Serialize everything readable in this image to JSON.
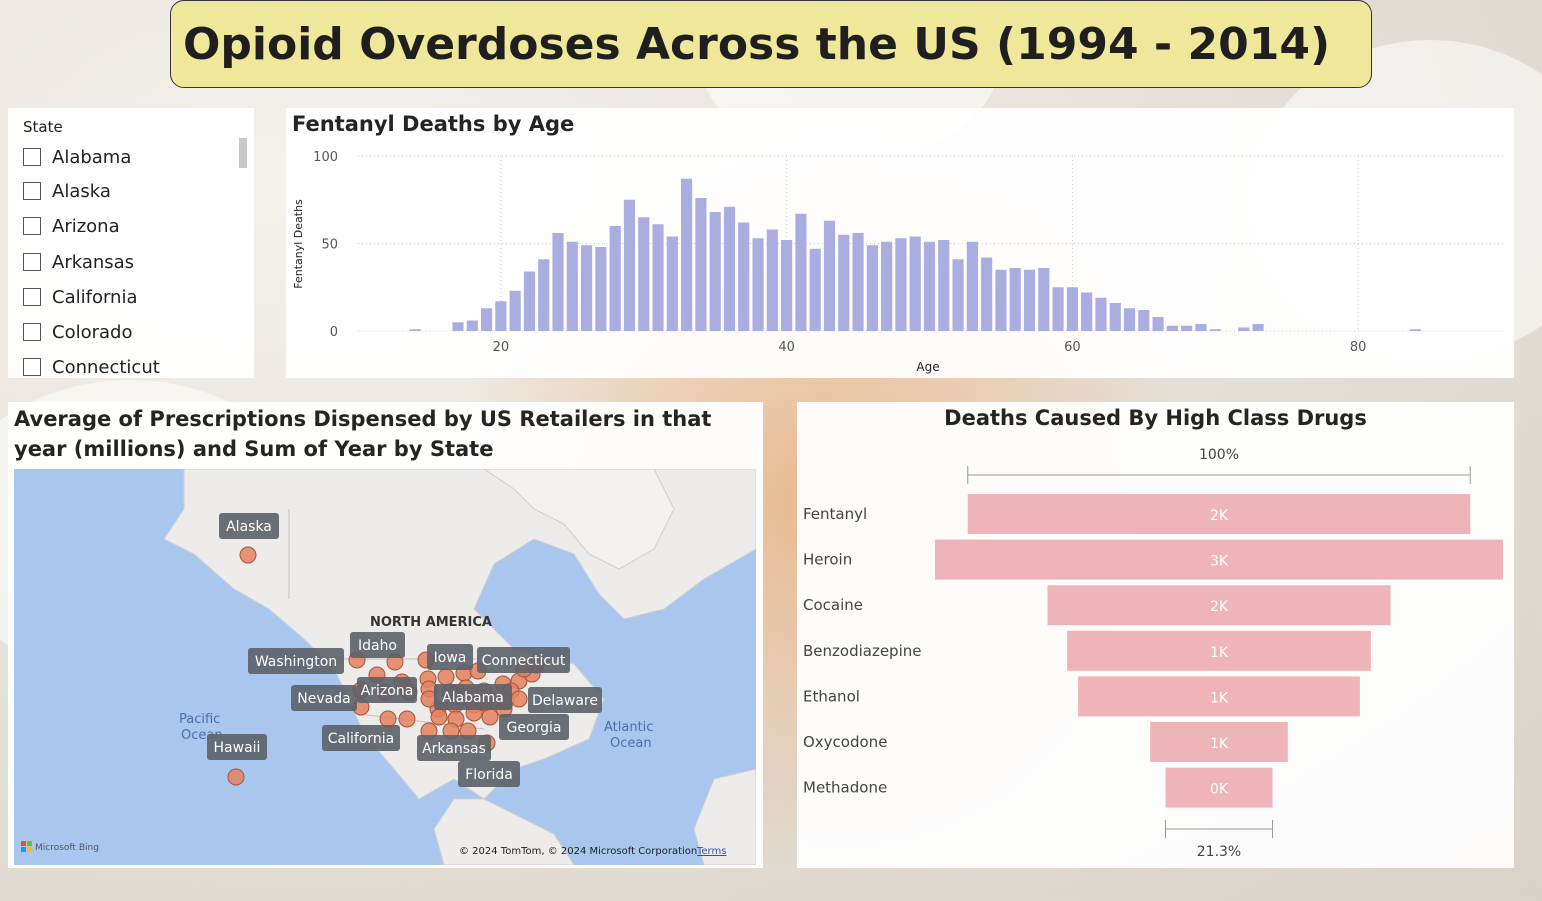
{
  "title": "Opioid Overdoses Across the US (1994 - 2014)",
  "slicer": {
    "title": "State",
    "items": [
      "Alabama",
      "Alaska",
      "Arizona",
      "Arkansas",
      "California",
      "Colorado",
      "Connecticut"
    ]
  },
  "chart_data": [
    {
      "type": "bar",
      "title": "Fentanyl Deaths by Age",
      "xlabel": "Age",
      "ylabel": "Fentanyl Deaths",
      "xlim": [
        10,
        90
      ],
      "ylim": [
        0,
        100
      ],
      "xticks": [
        20,
        40,
        60,
        80
      ],
      "yticks": [
        0,
        50,
        100
      ],
      "grid": true,
      "bar_color": "#a9addf",
      "x": [
        14,
        17,
        18,
        19,
        20,
        21,
        22,
        23,
        24,
        25,
        26,
        27,
        28,
        29,
        30,
        31,
        32,
        33,
        34,
        35,
        36,
        37,
        38,
        39,
        40,
        41,
        42,
        43,
        44,
        45,
        46,
        47,
        48,
        49,
        50,
        51,
        52,
        53,
        54,
        55,
        56,
        57,
        58,
        59,
        60,
        61,
        62,
        63,
        64,
        65,
        66,
        67,
        68,
        69,
        70,
        72,
        73,
        84
      ],
      "values": [
        1,
        5,
        6,
        13,
        17,
        23,
        34,
        41,
        56,
        51,
        49,
        48,
        60,
        75,
        65,
        61,
        54,
        87,
        76,
        68,
        71,
        62,
        53,
        58,
        52,
        67,
        47,
        63,
        55,
        56,
        49,
        51,
        53,
        54,
        51,
        52,
        41,
        51,
        42,
        35,
        36,
        35,
        36,
        25,
        25,
        22,
        19,
        16,
        13,
        12,
        8,
        3,
        3,
        4,
        1,
        2,
        4,
        1
      ]
    },
    {
      "type": "map",
      "title": "Average of Prescriptions Dispensed by US Retailers in that year (millions) and Sum of Year by State",
      "region_label": "NORTH AMERICA",
      "ocean_labels": [
        [
          "Pacific",
          "Ocean"
        ],
        [
          "Atlantic",
          "Ocean"
        ]
      ],
      "state_labels": [
        "Alaska",
        "Idaho",
        "Iowa",
        "Connecticut",
        "Washington",
        "Arizona",
        "Alabama",
        "Nevada",
        "Delaware",
        "California",
        "Georgia",
        "Hawaii",
        "Arkansas",
        "Florida"
      ],
      "bubble_color": "#e4815f",
      "attribution": "© 2024 TomTom, © 2024 Microsoft Corporation",
      "terms": "Terms",
      "provider": "Microsoft Bing"
    },
    {
      "type": "funnel",
      "title": "Deaths Caused By High Class Drugs",
      "top_label": "100%",
      "bottom_label": "21.3%",
      "bar_color": "#efb4b9",
      "categories": [
        "Fentanyl",
        "Heroin",
        "Cocaine",
        "Benzodiazepine",
        "Ethanol",
        "Oxycodone",
        "Methadone"
      ],
      "values": [
        2300,
        2600,
        1570,
        1390,
        1290,
        630,
        490
      ],
      "data_labels": [
        "2K",
        "3K",
        "2K",
        "1K",
        "1K",
        "1K",
        "0K"
      ]
    }
  ]
}
